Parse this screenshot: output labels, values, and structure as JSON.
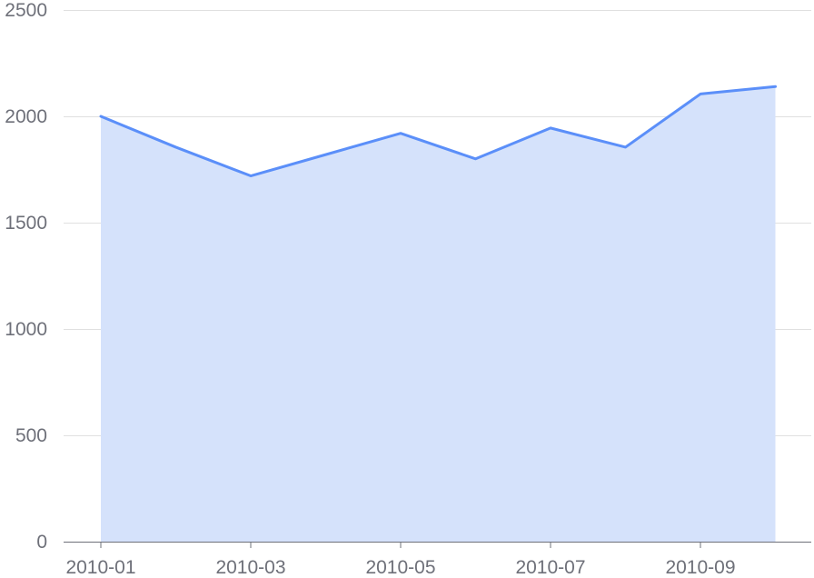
{
  "chart_data": {
    "type": "area",
    "title": "",
    "xlabel": "",
    "ylabel": "",
    "x": [
      "2010-01",
      "2010-02",
      "2010-03",
      "2010-04",
      "2010-05",
      "2010-06",
      "2010-07",
      "2010-08",
      "2010-09",
      "2010-10"
    ],
    "x_tick_labels": [
      "2010-01",
      "2010-03",
      "2010-05",
      "2010-07",
      "2010-09"
    ],
    "series": [
      {
        "values": [
          2000,
          1855,
          1720,
          1820,
          1920,
          1800,
          1945,
          1855,
          2105,
          2140
        ]
      }
    ],
    "ylim": [
      0,
      2500
    ],
    "y_ticks": [
      0,
      500,
      1000,
      1500,
      2000,
      2500
    ],
    "grid": true,
    "legend": "none",
    "colors": {
      "line": "#5b8ff9",
      "area": "#d5e2fb",
      "grid": "#e0e0e0",
      "axis": "#6e7079",
      "text": "#6e7079"
    }
  }
}
